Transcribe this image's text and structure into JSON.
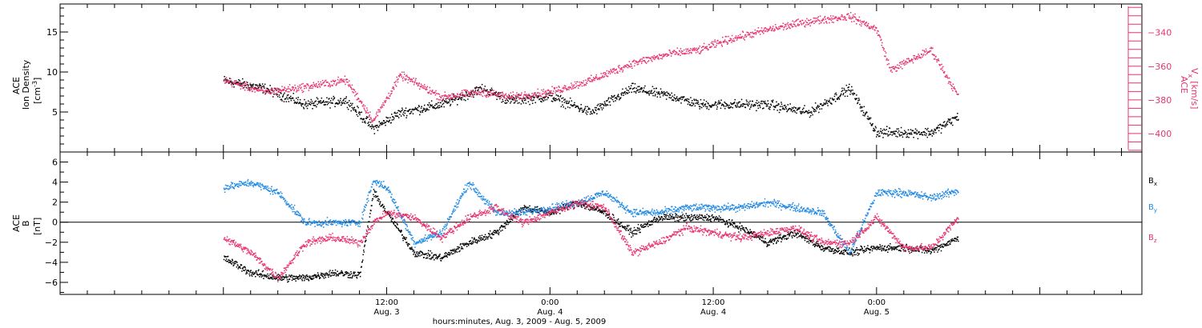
{
  "colors": {
    "black": "#000000",
    "blue": "#1e88e5",
    "red": "#e8336d"
  },
  "chart_data": [
    {
      "type": "scatter",
      "panel": "top",
      "ylabel_left": [
        "ACE",
        "Ion Density",
        "[cm",
        "-3",
        "]"
      ],
      "ylabel_right": [
        "ACE",
        "V",
        "x",
        "[km/s]"
      ],
      "left_ticks": [
        5,
        10,
        15
      ],
      "left_ylim": [
        0,
        18.5
      ],
      "right_ticks": [
        -340,
        -360,
        -380,
        -400
      ],
      "right_ylim": [
        -411,
        -323
      ],
      "x_unit": "hours since 00:00 Aug. 3, 2009",
      "x_points": [
        0,
        3,
        6,
        9,
        11,
        13,
        16,
        19,
        21,
        24,
        27,
        30,
        33,
        35,
        37,
        40,
        43,
        46,
        48,
        49,
        52,
        54
      ],
      "series": [
        {
          "name": "Ion Density",
          "axis": "left",
          "color": "#000000",
          "values": [
            9.0,
            8.0,
            6.0,
            6.5,
            3.0,
            5.0,
            6.0,
            8.0,
            6.5,
            7.0,
            5.0,
            8.0,
            7.0,
            6.0,
            6.0,
            6.0,
            5.0,
            8.0,
            2.5,
            2.5,
            2.5,
            4.5
          ]
        },
        {
          "name": "Vx",
          "axis": "right",
          "color": "#e8336d",
          "values": [
            -368,
            -375,
            -372,
            -368,
            -392,
            -365,
            -378,
            -375,
            -378,
            -375,
            -368,
            -358,
            -352,
            -350,
            -344,
            -338,
            -333,
            -330,
            -338,
            -362,
            -350,
            -378
          ]
        }
      ]
    },
    {
      "type": "scatter",
      "panel": "bottom",
      "ylabel": [
        "ACE",
        "B",
        "[nT]"
      ],
      "yticks": [
        -6,
        -4,
        -2,
        0,
        2,
        4,
        6
      ],
      "ylim": [
        -7.2,
        7.0
      ],
      "zero_line": true,
      "x_unit": "hours since 00:00 Aug. 3, 2009",
      "x_points": [
        0,
        2,
        4,
        6,
        8,
        10,
        11,
        12,
        14,
        16,
        18,
        20,
        22,
        24,
        26,
        28,
        30,
        32,
        34,
        36,
        38,
        40,
        42,
        44,
        46,
        48,
        50,
        52,
        54
      ],
      "legend": [
        {
          "label": "B",
          "sub": "x",
          "color": "#000000"
        },
        {
          "label": "B",
          "sub": "y",
          "color": "#1e88e5"
        },
        {
          "label": "B",
          "sub": "z",
          "color": "#e8336d"
        }
      ],
      "series": [
        {
          "name": "Bx",
          "color": "#000000",
          "values": [
            -3.5,
            -5.0,
            -5.5,
            -5.5,
            -5.0,
            -5.2,
            3.0,
            1.0,
            -3.0,
            -3.5,
            -2.0,
            -1.0,
            1.5,
            1.0,
            2.0,
            1.0,
            -1.0,
            0.5,
            0.5,
            0.5,
            -0.5,
            -2.0,
            -1.0,
            -2.5,
            -3.0,
            -2.5,
            -2.5,
            -2.8,
            -1.5
          ]
        },
        {
          "name": "By",
          "color": "#1e88e5",
          "values": [
            3.5,
            4.0,
            3.0,
            0.0,
            0.0,
            0.0,
            4.2,
            3.5,
            -2.0,
            -1.0,
            4.0,
            1.0,
            1.0,
            1.5,
            2.0,
            3.0,
            1.0,
            1.0,
            1.5,
            1.5,
            1.5,
            2.0,
            1.5,
            1.0,
            -3.0,
            3.0,
            3.0,
            2.5,
            3.2
          ]
        },
        {
          "name": "Bz",
          "color": "#e8336d",
          "values": [
            -1.5,
            -3.0,
            -5.5,
            -2.0,
            -1.5,
            -2.0,
            0.0,
            1.0,
            0.5,
            -1.5,
            0.5,
            1.5,
            0.0,
            1.0,
            2.0,
            1.5,
            -3.0,
            -2.0,
            -0.5,
            -1.0,
            -1.5,
            -1.0,
            -0.5,
            -2.0,
            -2.0,
            0.5,
            -2.5,
            -2.5,
            0.5
          ]
        }
      ]
    }
  ],
  "x_axis": {
    "range_hours": [
      -12,
      67.5
    ],
    "major_ticks": [
      {
        "hour": 12,
        "time": "12:00",
        "date": "Aug. 3"
      },
      {
        "hour": 24,
        "time": "0:00",
        "date": "Aug. 4"
      },
      {
        "hour": 36,
        "time": "12:00",
        "date": "Aug. 4"
      },
      {
        "hour": 48,
        "time": "0:00",
        "date": "Aug. 5"
      }
    ],
    "minor_step_hours": 2,
    "xlabel": "hours:minutes, Aug.  3, 2009 - Aug.  5, 2009"
  }
}
